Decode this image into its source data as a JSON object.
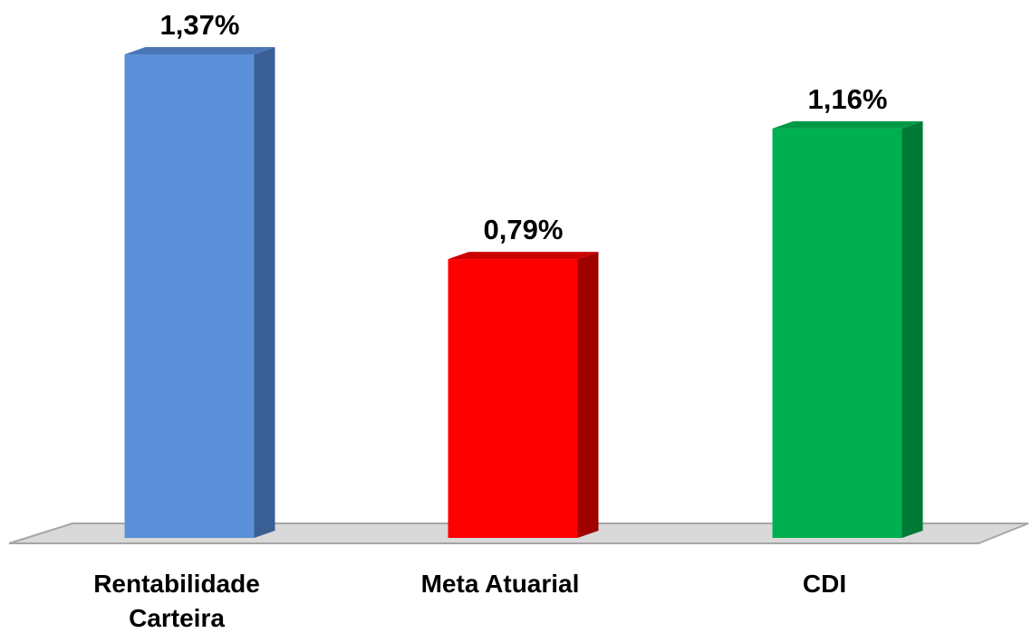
{
  "chart_data": {
    "type": "bar",
    "title": "",
    "xlabel": "",
    "ylabel": "",
    "categories": [
      "Rentabilidade Carteira",
      "Meta Atuarial",
      "CDI"
    ],
    "category_lines": [
      [
        "Rentabilidade",
        "Carteira"
      ],
      [
        "Meta Atuarial"
      ],
      [
        "CDI"
      ]
    ],
    "values": [
      1.37,
      0.79,
      1.16
    ],
    "value_labels": [
      "1,37%",
      "0,79%",
      "1,16%"
    ],
    "unit": "%",
    "ylim": [
      0,
      1.37
    ],
    "grid": false,
    "legend": "none",
    "colors": {
      "front": [
        "#5B8FD8",
        "#FF0000",
        "#00B050"
      ],
      "side": [
        "#3A5F95",
        "#A00000",
        "#007A36"
      ],
      "top": [
        "#4A76B5",
        "#CC0000",
        "#009944"
      ],
      "floor": "#D9D9D9",
      "floor_stroke": "#A6A6A6"
    }
  }
}
